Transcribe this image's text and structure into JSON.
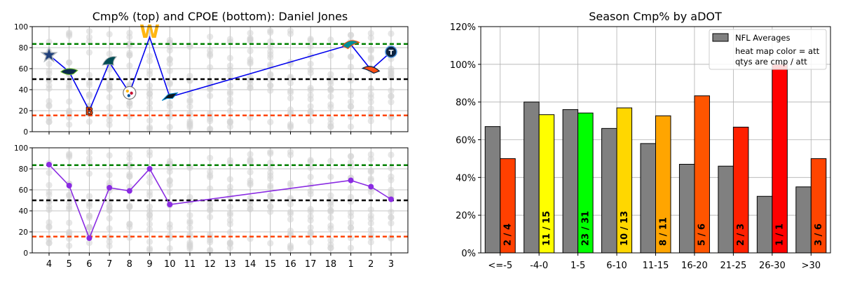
{
  "chart_data": [
    {
      "type": "line",
      "title": "Cmp% (top) and CPOE (bottom): Daniel Jones",
      "subplot": "top",
      "x_categories": [
        "4",
        "5",
        "6",
        "7",
        "8",
        "9",
        "10",
        "11",
        "12",
        "13",
        "14",
        "15",
        "16",
        "17",
        "18",
        "1",
        "2",
        "3"
      ],
      "ylim": [
        0,
        100
      ],
      "yticks": [
        "0",
        "20",
        "40",
        "60",
        "80",
        "100"
      ],
      "grid": true,
      "reference_lines": [
        {
          "y": 83.5,
          "color": "#008000"
        },
        {
          "y": 50,
          "color": "#000000"
        },
        {
          "y": 15.5,
          "color": "#ff4500"
        }
      ],
      "line_color": "#0000ee",
      "series": [
        {
          "points": [
            {
              "x": "4",
              "y": 73,
              "team_icon": "cowboys-star-icon"
            },
            {
              "x": "5",
              "y": 57,
              "team_icon": "seahawks-icon"
            },
            {
              "x": "6",
              "y": 20,
              "team_icon": "bengals-icon"
            },
            {
              "x": "7",
              "y": 66,
              "team_icon": "eagles-icon"
            },
            {
              "x": "8",
              "y": 37,
              "team_icon": "steelers-icon"
            },
            {
              "x": "9",
              "y": 90,
              "team_icon": "commanders-w-icon"
            },
            {
              "x": "10",
              "y": 33,
              "team_icon": "panthers-icon"
            },
            {
              "x": "1",
              "y": 83,
              "team_icon": "dolphins-icon"
            },
            {
              "x": "2",
              "y": 59,
              "team_icon": "broncos-icon"
            },
            {
              "x": "3",
              "y": 76,
              "team_icon": "titans-icon"
            }
          ]
        }
      ],
      "background_scatter_color": "#d3d3d3"
    },
    {
      "type": "line",
      "subplot": "bottom",
      "x_categories": [
        "4",
        "5",
        "6",
        "7",
        "8",
        "9",
        "10",
        "11",
        "12",
        "13",
        "14",
        "15",
        "16",
        "17",
        "18",
        "1",
        "2",
        "3"
      ],
      "ylim": [
        0,
        100
      ],
      "yticks": [
        "0",
        "20",
        "40",
        "60",
        "80",
        "100"
      ],
      "grid": true,
      "reference_lines": [
        {
          "y": 83.5,
          "color": "#008000"
        },
        {
          "y": 50,
          "color": "#000000"
        },
        {
          "y": 15.5,
          "color": "#ff4500"
        }
      ],
      "line_color": "#8a2be2",
      "series": [
        {
          "points": [
            {
              "x": "4",
              "y": 84
            },
            {
              "x": "5",
              "y": 64
            },
            {
              "x": "6",
              "y": 14
            },
            {
              "x": "7",
              "y": 62
            },
            {
              "x": "8",
              "y": 59
            },
            {
              "x": "9",
              "y": 80
            },
            {
              "x": "10",
              "y": 46
            },
            {
              "x": "1",
              "y": 69
            },
            {
              "x": "2",
              "y": 63
            },
            {
              "x": "3",
              "y": 51
            }
          ]
        }
      ],
      "background_scatter_color": "#d3d3d3"
    },
    {
      "type": "bar",
      "title": "Season Cmp% by aDOT",
      "categories": [
        "<=-5",
        "-4-0",
        "1-5",
        "6-10",
        "11-15",
        "16-20",
        "21-25",
        "26-30",
        ">30"
      ],
      "ylim": [
        0,
        1.2
      ],
      "yticks": [
        "0%",
        "20%",
        "40%",
        "60%",
        "80%",
        "100%",
        "120%"
      ],
      "grid": true,
      "legend": {
        "placement": "top-right",
        "entries": [
          "NFL Averages"
        ],
        "notes": [
          "heat map color = att",
          "qtys are cmp / att"
        ]
      },
      "series": [
        {
          "name": "NFL Averages",
          "color": "#808080",
          "values": [
            0.67,
            0.8,
            0.76,
            0.66,
            0.58,
            0.47,
            0.46,
            0.3,
            0.35
          ]
        },
        {
          "values": [
            0.5,
            0.733,
            0.742,
            0.769,
            0.727,
            0.833,
            0.667,
            1.0,
            0.5
          ],
          "labels": [
            "2 / 4",
            "11 / 15",
            "23 / 31",
            "10 / 13",
            "8 / 11",
            "5 / 6",
            "2 / 3",
            "1 / 1",
            "3 / 6"
          ],
          "colors": [
            "#ff4000",
            "#ffff00",
            "#00ff00",
            "#ffd700",
            "#ffa500",
            "#ff5500",
            "#ff2000",
            "#ff0000",
            "#ff4500"
          ]
        }
      ]
    }
  ]
}
